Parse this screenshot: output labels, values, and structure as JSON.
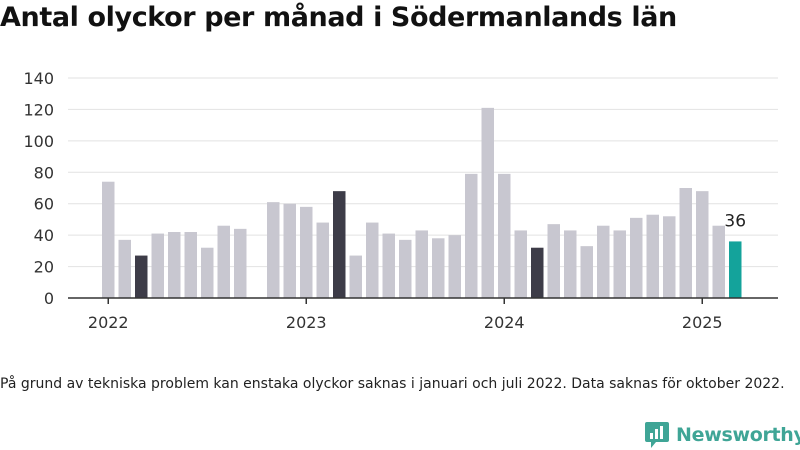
{
  "title": "Antal olyckor per månad i Södermanlands län",
  "note": "På grund av tekniska problem kan enstaka olyckor saknas i januari och juli 2022. Data saknas för oktober 2022.",
  "brand": {
    "name": "Newsworthy",
    "icon": "newsworthy-logo-icon"
  },
  "colors": {
    "default": "#c8c7d0",
    "highlight": "#3d3c48",
    "latest": "#14a39b",
    "grid": "#e2e2e2",
    "axis": "#333333",
    "text": "#333333"
  },
  "chart_data": {
    "type": "bar",
    "title": "Antal olyckor per månad i Södermanlands län",
    "xlabel": "",
    "ylabel": "",
    "ylim": [
      0,
      140
    ],
    "yticks": [
      0,
      20,
      40,
      60,
      80,
      100,
      120,
      140
    ],
    "grid": true,
    "x_tick_labels": [
      "2022",
      "2023",
      "2024",
      "2025"
    ],
    "series": [
      {
        "categories": [
          "2022-01",
          "2022-02",
          "2022-03",
          "2022-04",
          "2022-05",
          "2022-06",
          "2022-07",
          "2022-08",
          "2022-09",
          "2022-10",
          "2022-11",
          "2022-12",
          "2023-01",
          "2023-02",
          "2023-03",
          "2023-04",
          "2023-05",
          "2023-06",
          "2023-07",
          "2023-08",
          "2023-09",
          "2023-10",
          "2023-11",
          "2023-12",
          "2024-01",
          "2024-02",
          "2024-03",
          "2024-04",
          "2024-05",
          "2024-06",
          "2024-07",
          "2024-08",
          "2024-09",
          "2024-10",
          "2024-11",
          "2024-12",
          "2025-01",
          "2025-02",
          "2025-03"
        ],
        "values": [
          74,
          37,
          27,
          41,
          42,
          42,
          32,
          46,
          44,
          null,
          61,
          60,
          58,
          48,
          68,
          27,
          48,
          41,
          37,
          43,
          38,
          40,
          79,
          121,
          79,
          43,
          32,
          47,
          43,
          33,
          46,
          43,
          51,
          53,
          52,
          70,
          68,
          46,
          36
        ],
        "highlight_months": [
          "2022-03",
          "2023-03",
          "2024-03"
        ],
        "latest_month": "2025-03"
      }
    ],
    "annotations": [
      {
        "month": "2025-03",
        "text": "36"
      }
    ]
  }
}
